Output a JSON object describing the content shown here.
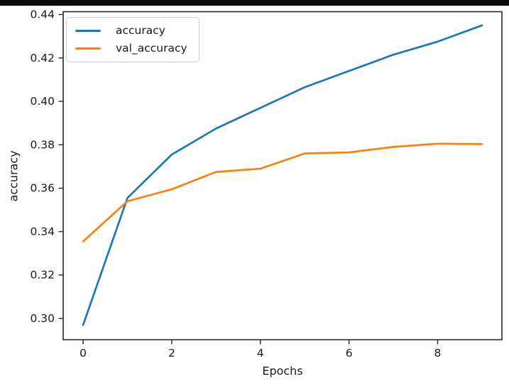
{
  "window": {
    "top_bar_color": "#0d0d0d",
    "background_color": "#ffffff"
  },
  "chart_data": {
    "type": "line",
    "title": "",
    "xlabel": "Epochs",
    "ylabel": "accuracy",
    "x": [
      0,
      1,
      2,
      3,
      4,
      5,
      6,
      7,
      8,
      9
    ],
    "series": [
      {
        "name": "accuracy",
        "color": "#1f77b4",
        "values": [
          0.297,
          0.3555,
          0.3755,
          0.3875,
          0.397,
          0.4065,
          0.414,
          0.4215,
          0.4275,
          0.435
        ]
      },
      {
        "name": "val_accuracy",
        "color": "#ff7f0e",
        "values": [
          0.3355,
          0.354,
          0.3595,
          0.3675,
          0.369,
          0.376,
          0.3765,
          0.379,
          0.3805,
          0.3803
        ]
      }
    ],
    "xlim": [
      -0.45,
      9.45
    ],
    "ylim": [
      0.2902,
      0.4413
    ],
    "xticks": {
      "values": [
        0,
        2,
        4,
        6,
        8
      ],
      "labels": [
        "0",
        "2",
        "4",
        "6",
        "8"
      ]
    },
    "yticks": {
      "values": [
        0.3,
        0.32,
        0.34,
        0.36,
        0.38,
        0.4,
        0.42,
        0.44
      ],
      "labels": [
        "0.30",
        "0.32",
        "0.34",
        "0.36",
        "0.38",
        "0.40",
        "0.42",
        "0.44"
      ]
    },
    "grid": false,
    "legend": {
      "position": "upper left",
      "entries": [
        "accuracy",
        "val_accuracy"
      ]
    },
    "axis_color": "#262626",
    "text_color": "#1a1a1a"
  }
}
